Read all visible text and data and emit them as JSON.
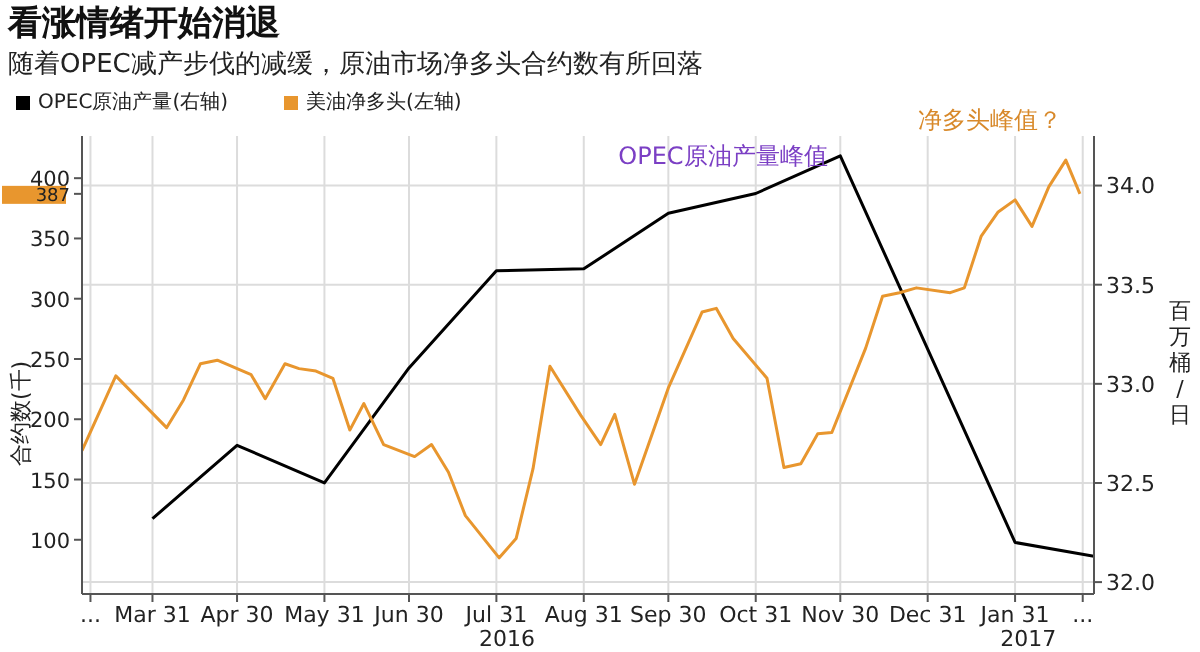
{
  "chart_data": {
    "type": "line",
    "title": "看涨情绪开始消退",
    "subtitle": "随着OPEC减产步伐的减缓，原油市场净多头合约数有所回落",
    "ylabel": "合约数(千)",
    "y2label": "百万桶/日",
    "series": [
      {
        "name": "OPEC原油产量(右轴)",
        "color": "#000000",
        "axis": "y2",
        "x": [
          "2016-03-31",
          "2016-04-30",
          "2016-05-31",
          "2016-06-30",
          "2016-07-31",
          "2016-08-31",
          "2016-09-30",
          "2016-10-31",
          "2016-11-30",
          "2017-01-31",
          "2017-02-28"
        ],
        "values": [
          32.32,
          32.69,
          32.5,
          33.08,
          33.57,
          33.58,
          33.86,
          33.96,
          34.15,
          32.2,
          32.13
        ]
      },
      {
        "name": "美油净多头(左轴)",
        "color": "#e8962e",
        "axis": "y",
        "x": [
          "2016-03-06",
          "2016-03-18",
          "2016-04-05",
          "2016-04-11",
          "2016-04-17",
          "2016-04-23",
          "2016-05-05",
          "2016-05-10",
          "2016-05-17",
          "2016-05-22",
          "2016-05-28",
          "2016-06-03",
          "2016-06-09",
          "2016-06-14",
          "2016-06-21",
          "2016-07-02",
          "2016-07-08",
          "2016-07-14",
          "2016-07-20",
          "2016-08-01",
          "2016-08-07",
          "2016-08-13",
          "2016-08-19",
          "2016-08-30",
          "2016-09-06",
          "2016-09-11",
          "2016-09-18",
          "2016-09-30",
          "2016-10-12",
          "2016-10-17",
          "2016-10-23",
          "2016-11-04",
          "2016-11-10",
          "2016-11-16",
          "2016-11-22",
          "2016-11-27",
          "2016-12-09",
          "2016-12-15",
          "2016-12-21",
          "2016-12-27",
          "2017-01-08",
          "2017-01-13",
          "2017-01-19",
          "2017-01-25",
          "2017-01-31",
          "2017-02-06",
          "2017-02-12",
          "2017-02-18",
          "2017-02-23"
        ],
        "values": [
          174,
          236,
          193,
          216,
          246,
          249,
          237,
          217,
          246,
          242,
          240,
          234,
          191,
          213,
          179,
          169,
          179,
          156,
          120,
          85,
          101,
          159,
          244,
          203,
          179,
          204,
          146,
          226,
          289,
          292,
          267,
          234,
          160,
          163,
          188,
          189,
          259,
          302,
          305,
          309,
          305,
          309,
          352,
          372,
          382,
          360,
          393,
          415,
          387
        ]
      }
    ],
    "xlim": [
      "2016-03-06",
      "2017-02-28"
    ],
    "xticks": [
      {
        "value": "2016-03-09",
        "label": "..."
      },
      {
        "value": "2016-03-31",
        "label": "Mar 31"
      },
      {
        "value": "2016-04-30",
        "label": "Apr 30"
      },
      {
        "value": "2016-05-31",
        "label": "May 31"
      },
      {
        "value": "2016-06-30",
        "label": "Jun 30"
      },
      {
        "value": "2016-07-31",
        "label": "Jul 31"
      },
      {
        "value": "2016-08-31",
        "label": "Aug 31"
      },
      {
        "value": "2016-09-30",
        "label": "Sep 30"
      },
      {
        "value": "2016-10-31",
        "label": "Oct 31"
      },
      {
        "value": "2016-11-30",
        "label": "Nov 30"
      },
      {
        "value": "2016-12-31",
        "label": "Dec 31"
      },
      {
        "value": "2017-01-31",
        "label": "Jan 31"
      },
      {
        "value": "2017-02-24",
        "label": "..."
      }
    ],
    "ylim": [
      55,
      435
    ],
    "yticks": [
      100,
      150,
      200,
      250,
      300,
      350,
      400,
      {
        "value": 387,
        "label": "387"
      }
    ],
    "y2lim": [
      31.94,
      34.25
    ],
    "y2ticks": [
      {
        "value": 32,
        "label": "32.0"
      },
      {
        "value": 32.5,
        "label": "32.5"
      },
      {
        "value": 33,
        "label": "33.0"
      },
      {
        "value": 33.5,
        "label": "33.5"
      },
      {
        "value": 34,
        "label": "34.0"
      }
    ],
    "grid": true,
    "legend": "top left",
    "marker": "none",
    "annotations": [
      "2016",
      "2017",
      "OPEC原油产量峰值",
      {
        "text": "净多头峰值？",
        "x": "2017-02-18",
        "y": 415
      }
    ]
  }
}
